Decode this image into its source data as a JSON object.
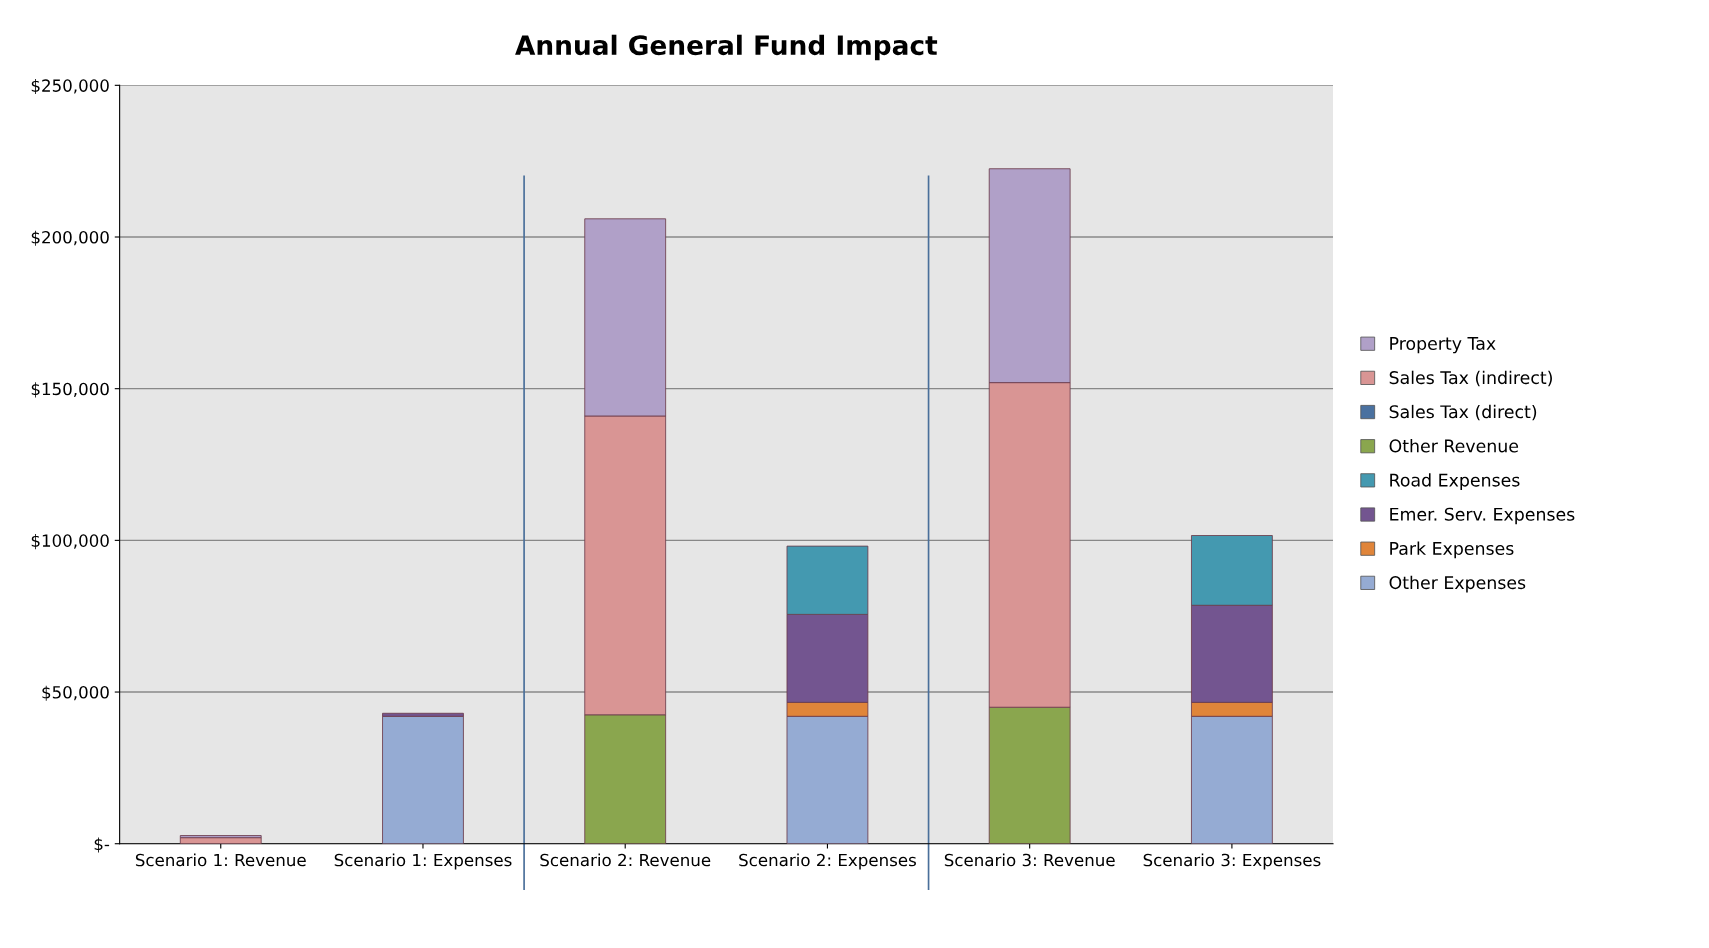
{
  "chart_data": {
    "type": "bar",
    "title": "Annual General Fund Impact",
    "stacked": true,
    "categories": [
      "Scenario 1: Revenue",
      "Scenario 1: Expenses",
      "Scenario 2: Revenue",
      "Scenario 2: Expenses",
      "Scenario 3: Revenue",
      "Scenario 3: Expenses"
    ],
    "series": [
      {
        "name": "Other Expenses",
        "color": "#95abd3",
        "values": [
          0,
          42000,
          0,
          42000,
          0,
          42000
        ]
      },
      {
        "name": "Park Expenses",
        "color": "#e0853a",
        "values": [
          0,
          0,
          0,
          4600,
          0,
          4600
        ]
      },
      {
        "name": "Emer. Serv. Expenses",
        "color": "#735590",
        "values": [
          0,
          1000,
          0,
          29000,
          0,
          32000
        ]
      },
      {
        "name": "Road Expenses",
        "color": "#4499b0",
        "values": [
          0,
          0,
          0,
          22500,
          0,
          23000
        ]
      },
      {
        "name": "Other Revenue",
        "color": "#8aa64e",
        "values": [
          0,
          0,
          42500,
          0,
          45000,
          0
        ]
      },
      {
        "name": "Sales Tax (direct)",
        "color": "#4a71a0",
        "values": [
          0,
          0,
          0,
          0,
          0,
          0
        ]
      },
      {
        "name": "Sales Tax (indirect)",
        "color": "#d99594",
        "values": [
          2000,
          0,
          98500,
          0,
          107000,
          0
        ]
      },
      {
        "name": "Property Tax",
        "color": "#b0a0c8",
        "values": [
          700,
          0,
          65000,
          0,
          70500,
          0
        ]
      }
    ],
    "ylim": [
      0,
      250000
    ],
    "yticks": [
      {
        "value": 0,
        "label": "$-"
      },
      {
        "value": 50000,
        "label": "$50,000"
      },
      {
        "value": 100000,
        "label": "$100,000"
      },
      {
        "value": 150000,
        "label": "$150,000"
      },
      {
        "value": 200000,
        "label": "$200,000"
      },
      {
        "value": 250000,
        "label": "$250,000"
      }
    ],
    "grid": "y",
    "legend": "right"
  }
}
